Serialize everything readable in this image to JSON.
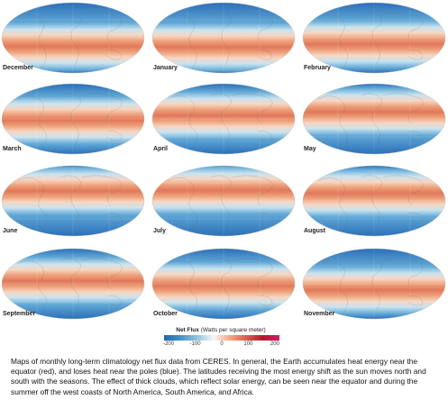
{
  "months": [
    {
      "name": "December",
      "season": "dec"
    },
    {
      "name": "January",
      "season": "jan"
    },
    {
      "name": "February",
      "season": "feb"
    },
    {
      "name": "March",
      "season": "mar"
    },
    {
      "name": "April",
      "season": "apr"
    },
    {
      "name": "May",
      "season": "may"
    },
    {
      "name": "June",
      "season": "jun"
    },
    {
      "name": "July",
      "season": "jul"
    },
    {
      "name": "August",
      "season": "aug"
    },
    {
      "name": "September",
      "season": "sep"
    },
    {
      "name": "October",
      "season": "oct"
    },
    {
      "name": "November",
      "season": "nov"
    }
  ],
  "legend": {
    "title_bold": "Net Flux",
    "title_unit": "(Watts per square meter)",
    "ticks": [
      "-200",
      "-100",
      "0",
      "100",
      "200"
    ]
  },
  "caption": "Maps of monthly long-term climatology net flux data from CERES. In general, the Earth accumulates heat energy near the equator (red), and loses heat near the poles (blue). The latitudes receiving the most energy shift as the sun moves north and south with the seasons. The effect of thick clouds, which reflect solar energy, can be seen near the equator and during the summer off the west coasts of North America, South America, and Africa."
}
